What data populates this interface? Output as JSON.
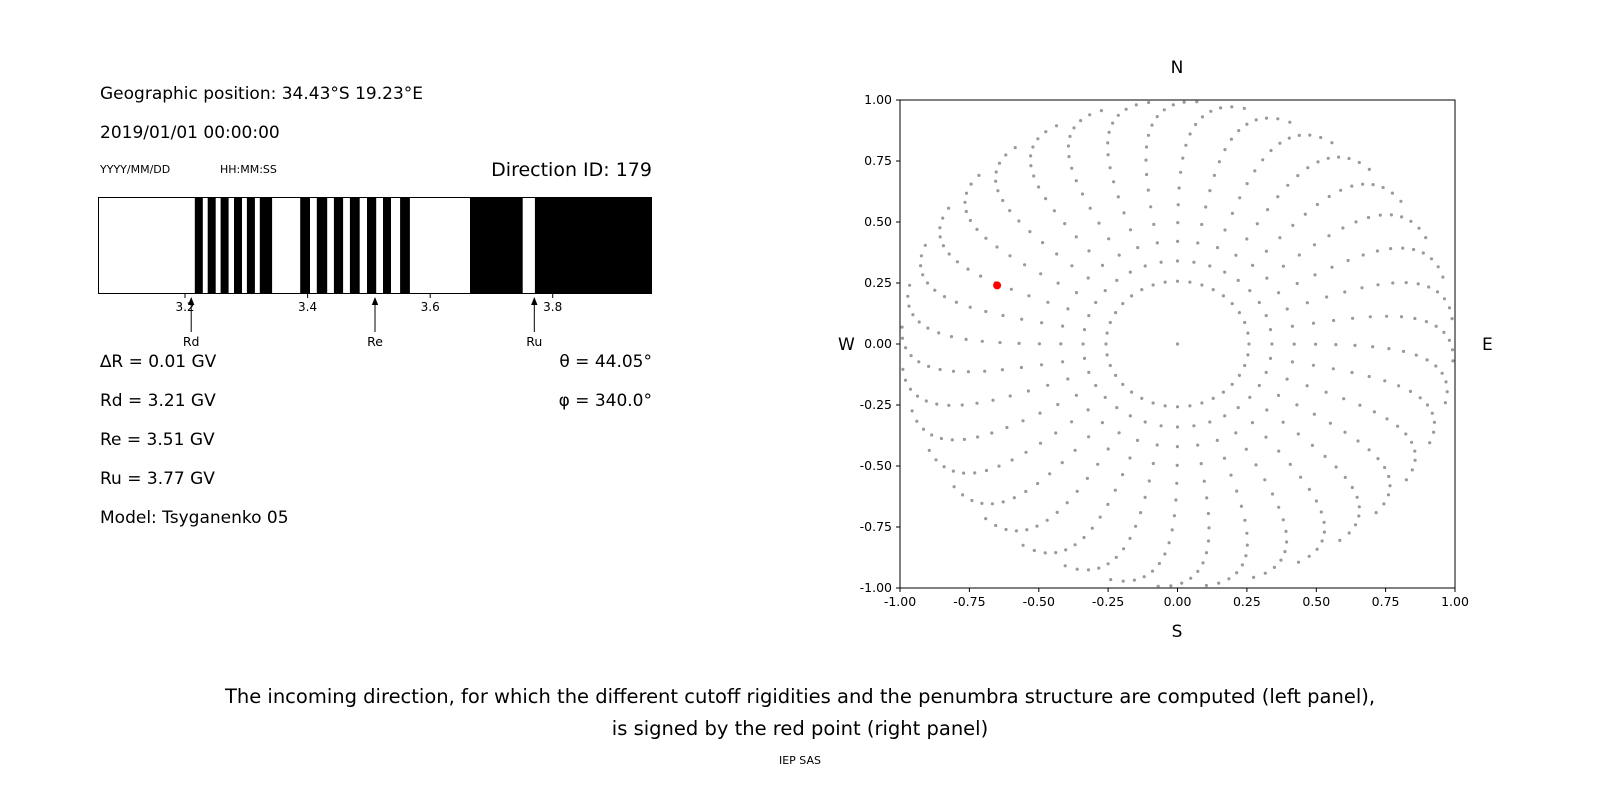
{
  "info_panel": {
    "geographic_position": "Geographic position: 34.43°S 19.23°E",
    "datetime": "2019/01/01 00:00:00",
    "date_format_label": "YYYY/MM/DD",
    "time_format_label": "HH:MM:SS",
    "direction_id_label": "Direction ID: 179",
    "params_left": [
      "∆R = 0.01 GV",
      "Rd = 3.21 GV",
      "Re = 3.51 GV",
      "Ru = 3.77 GV",
      "Model: Tsyganenko 05"
    ],
    "params_right": [
      "θ = 44.05°",
      "φ = 340.0°"
    ]
  },
  "caption": {
    "line1": "The incoming direction, for which the different cutoff rigidities and the penumbra structure are computed (left panel),",
    "line2": "is signed by the red point (right panel)",
    "credit": "IEP SAS"
  },
  "chart_data": [
    {
      "id": "penumbra-structure",
      "type": "bar",
      "title": "",
      "xlabel": "",
      "xlim": [
        3.058,
        3.962
      ],
      "xticks": [
        3.2,
        3.4,
        3.6,
        3.8
      ],
      "background": "#ffffff",
      "bar_color": "#000000",
      "black_bars_gv": [
        [
          3.216,
          3.229
        ],
        [
          3.237,
          3.25
        ],
        [
          3.258,
          3.271
        ],
        [
          3.28,
          3.293
        ],
        [
          3.301,
          3.314
        ],
        [
          3.322,
          3.342
        ],
        [
          3.388,
          3.404
        ],
        [
          3.415,
          3.432
        ],
        [
          3.443,
          3.458
        ],
        [
          3.469,
          3.485
        ],
        [
          3.497,
          3.512
        ],
        [
          3.523,
          3.536
        ],
        [
          3.551,
          3.567
        ],
        [
          3.665,
          3.751
        ],
        [
          3.771,
          3.962
        ]
      ],
      "markers": [
        {
          "label": "Rd",
          "x_gv": 3.21
        },
        {
          "label": "Re",
          "x_gv": 3.51
        },
        {
          "label": "Ru",
          "x_gv": 3.77
        }
      ],
      "values_gv": {
        "delta_r": 0.01,
        "rd": 3.21,
        "re": 3.51,
        "ru": 3.77
      }
    },
    {
      "id": "asymptotic-directions",
      "type": "scatter",
      "xlim": [
        -1,
        1
      ],
      "ylim": [
        -1,
        1
      ],
      "xticks": [
        -1,
        -0.75,
        -0.5,
        -0.25,
        0,
        0.25,
        0.5,
        0.75,
        1
      ],
      "yticks": [
        -1,
        -0.75,
        -0.5,
        -0.25,
        0,
        0.25,
        0.5,
        0.75,
        1
      ],
      "grid": false,
      "compass": {
        "top": "N",
        "bottom": "S",
        "left": "W",
        "right": "E"
      },
      "gray_dots": {
        "color": "#9a9a9a",
        "azimuth_step_deg": 10,
        "zenith_start_deg": 15,
        "zenith_step_deg": 5,
        "zenith_end_deg": 90,
        "radius_rule": "sin(zenith)",
        "swirl_deg": 14
      },
      "center_dot": true,
      "red_point": {
        "x": -0.65,
        "y": 0.24,
        "theta_deg": 44.05,
        "phi_deg": 340.0,
        "color": "#ff0000"
      }
    }
  ]
}
